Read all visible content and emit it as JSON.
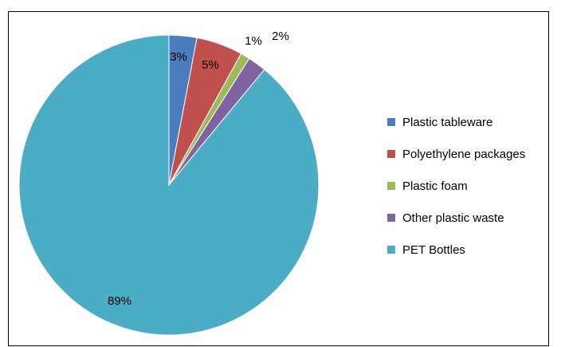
{
  "chart_data": {
    "type": "pie",
    "categories": [
      "Plastic tableware",
      "Polyethylene packages",
      "Plastic foam",
      "Other plastic waste",
      "PET Bottles"
    ],
    "values": [
      3,
      5,
      1,
      2,
      89
    ],
    "labels": [
      "3%",
      "5%",
      "1%",
      "2%",
      "89%"
    ],
    "colors": [
      "#4a7dc0",
      "#c0504d",
      "#9bbb59",
      "#8064a2",
      "#4bacc6"
    ],
    "legend_position": "right"
  }
}
